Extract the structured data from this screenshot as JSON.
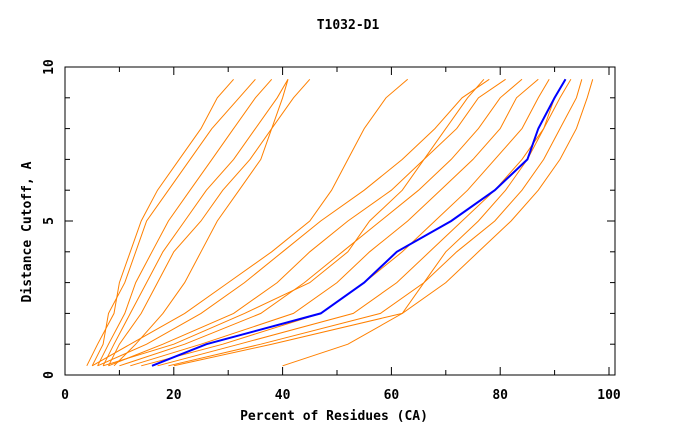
{
  "chart_data": {
    "type": "line",
    "title": "T1032-D1",
    "xlabel": "Percent of Residues (CA)",
    "ylabel": "Distance Cutoff, A",
    "xlim": [
      0,
      100
    ],
    "ylim": [
      0,
      10
    ],
    "x_ticks": [
      "0",
      "20",
      "40",
      "60",
      "80",
      "100"
    ],
    "y_ticks": [
      "0",
      "5",
      "10"
    ],
    "grid": false,
    "colors": {
      "models": "#ff8000",
      "highlight": "#0000ff"
    },
    "cutoffs": [
      0.3,
      1,
      2,
      3,
      4,
      5,
      6,
      7,
      8,
      9,
      9.6
    ],
    "series": [
      {
        "x": [
          4,
          6,
          9,
          10,
          12,
          14,
          17,
          21,
          25,
          28,
          31
        ]
      },
      {
        "x": [
          5,
          7,
          8,
          11,
          13,
          15,
          19,
          23,
          27,
          32,
          35
        ]
      },
      {
        "x": [
          6,
          8,
          11,
          13,
          16,
          19,
          23,
          27,
          31,
          35,
          38
        ]
      },
      {
        "x": [
          7,
          9,
          12,
          15,
          18,
          22,
          26,
          31,
          35,
          39,
          41
        ]
      },
      {
        "x": [
          8,
          10,
          14,
          17,
          20,
          25,
          29,
          34,
          38,
          42,
          45
        ]
      },
      {
        "x": [
          9,
          13,
          18,
          22,
          25,
          28,
          32,
          36,
          38,
          40,
          41
        ]
      },
      {
        "x": [
          5,
          12,
          22,
          30,
          38,
          45,
          49,
          52,
          55,
          59,
          63
        ]
      },
      {
        "x": [
          7,
          20,
          33,
          45,
          52,
          56,
          62,
          66,
          70,
          74,
          77
        ]
      },
      {
        "x": [
          40,
          52,
          62,
          66,
          70,
          76,
          81,
          85,
          88,
          91,
          93
        ]
      },
      {
        "x": [
          6,
          15,
          25,
          33,
          40,
          47,
          55,
          62,
          68,
          73,
          78
        ]
      },
      {
        "x": [
          8,
          18,
          31,
          39,
          45,
          52,
          60,
          66,
          72,
          76,
          81
        ]
      },
      {
        "x": [
          10,
          22,
          36,
          44,
          51,
          58,
          65,
          71,
          76,
          80,
          84
        ]
      },
      {
        "x": [
          12,
          25,
          42,
          50,
          56,
          63,
          69,
          75,
          80,
          83,
          87
        ]
      },
      {
        "x": [
          14,
          29,
          47,
          55,
          62,
          68,
          74,
          79,
          84,
          87,
          89
        ]
      },
      {
        "x": [
          17,
          32,
          53,
          61,
          67,
          73,
          79,
          84,
          88,
          90,
          92
        ]
      },
      {
        "x": [
          19,
          36,
          58,
          66,
          72,
          79,
          84,
          88,
          91,
          94,
          95
        ]
      },
      {
        "x": [
          20,
          38,
          62,
          70,
          76,
          82,
          87,
          91,
          94,
          96,
          97
        ]
      }
    ],
    "highlight_series": {
      "x": [
        16,
        26,
        47,
        55,
        61,
        71,
        79,
        85,
        87,
        90,
        92
      ]
    }
  }
}
